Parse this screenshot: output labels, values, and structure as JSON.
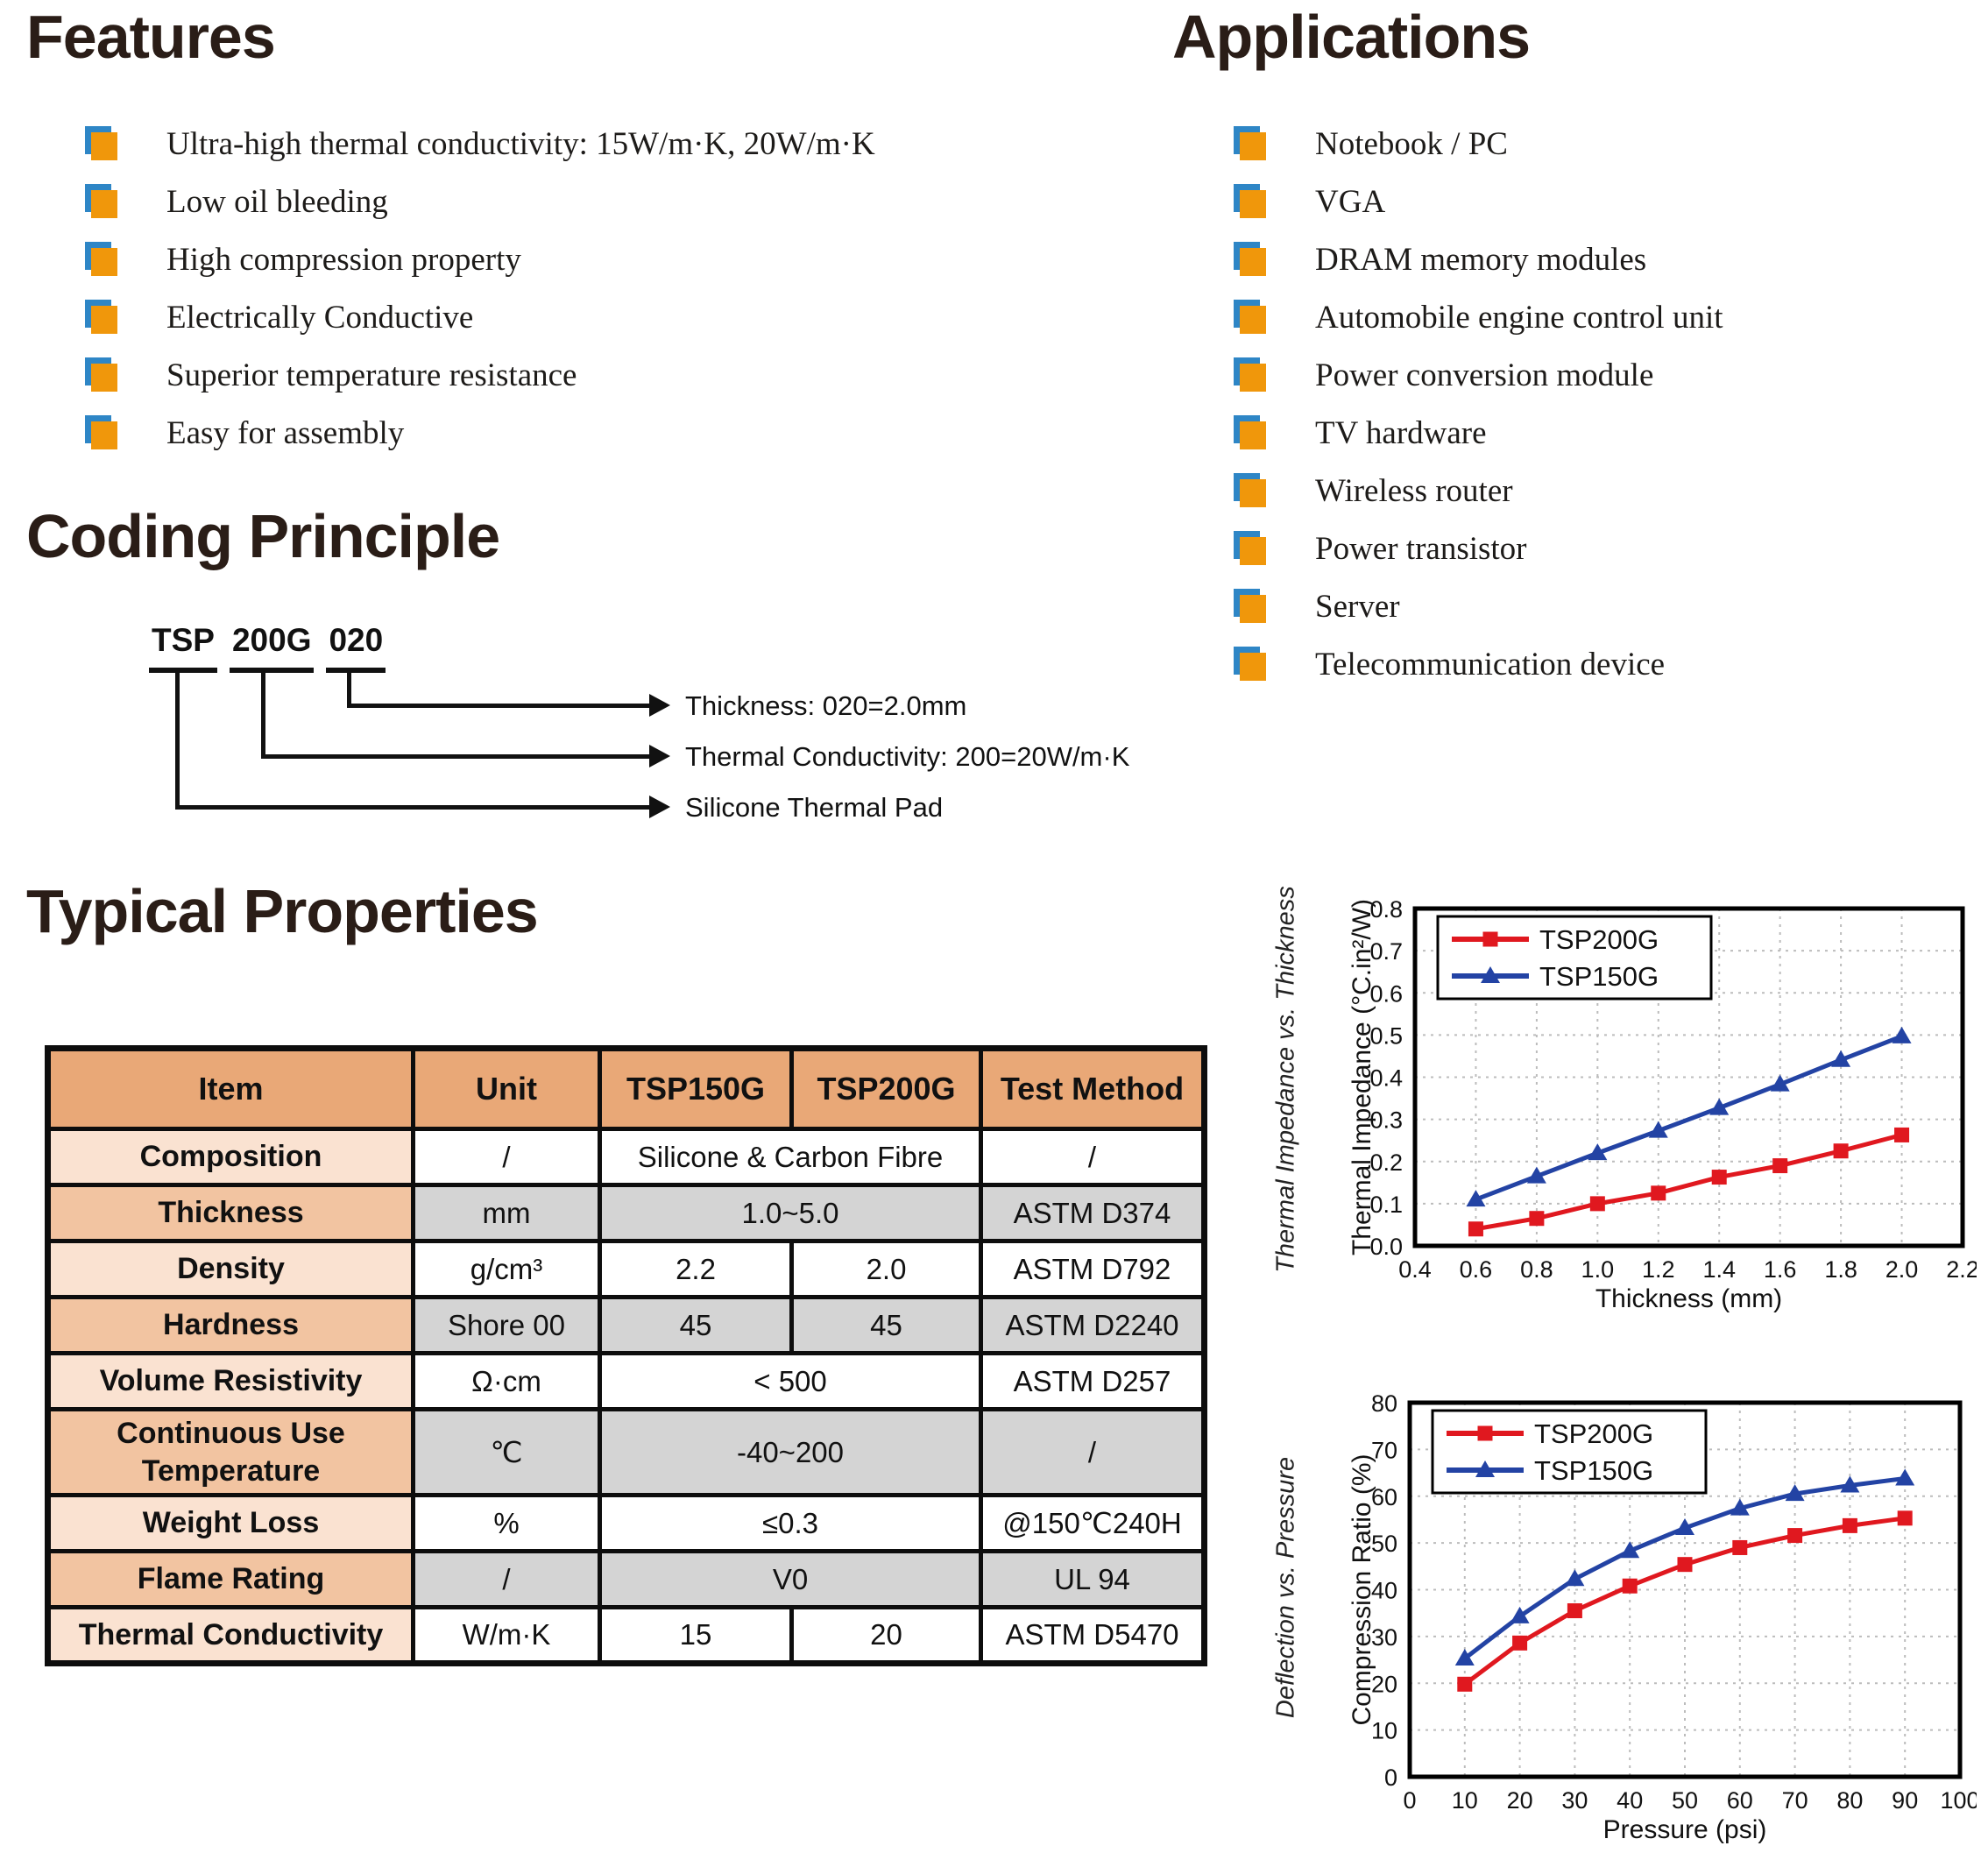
{
  "page": {
    "background": "#ffffff"
  },
  "features": {
    "title": "Features",
    "items": [
      "Ultra-high thermal conductivity: 15W/m·K, 20W/m·K",
      "Low oil bleeding",
      "High compression property",
      "Electrically Conductive",
      "Superior temperature resistance",
      "Easy for assembly"
    ]
  },
  "applications": {
    "title": "Applications",
    "items": [
      "Notebook / PC",
      "VGA",
      "DRAM memory modules",
      "Automobile engine control unit",
      "Power conversion module",
      "TV hardware",
      "Wireless router",
      "Power transistor",
      "Server",
      "Telecommunication device"
    ]
  },
  "coding_principle": {
    "title": "Coding Principle",
    "code_segments": [
      "TSP",
      "200G",
      "020"
    ],
    "callouts": [
      "Thickness: 020=2.0mm",
      "Thermal Conductivity: 200=20W/m·K",
      "Silicone Thermal Pad"
    ]
  },
  "typical_properties": {
    "title": "Typical Properties",
    "columns": [
      "Item",
      "Unit",
      "TSP150G",
      "TSP200G",
      "Test Method"
    ],
    "rows": [
      {
        "item": "Composition",
        "unit": "/",
        "merged": "Silicone & Carbon Fibre",
        "test": "/",
        "item_bg": "pink",
        "cells_bg": "white"
      },
      {
        "item": "Thickness",
        "unit": "mm",
        "merged": "1.0~5.0",
        "test": "ASTM D374",
        "item_bg": "orange",
        "cells_bg": "gray"
      },
      {
        "item": "Density",
        "unit": "g/cm³",
        "tsp150g": "2.2",
        "tsp200g": "2.0",
        "test": "ASTM D792",
        "item_bg": "pink",
        "cells_bg": "white"
      },
      {
        "item": "Hardness",
        "unit": "Shore 00",
        "tsp150g": "45",
        "tsp200g": "45",
        "test": "ASTM D2240",
        "item_bg": "orange",
        "cells_bg": "gray"
      },
      {
        "item": "Volume Resistivity",
        "unit": "Ω·cm",
        "merged": "< 500",
        "test": "ASTM D257",
        "item_bg": "pink",
        "cells_bg": "white"
      },
      {
        "item": "Continuous Use Temperature",
        "unit": "℃",
        "merged": "-40~200",
        "test": "/",
        "item_bg": "orange",
        "cells_bg": "gray",
        "tall": true
      },
      {
        "item": "Weight Loss",
        "unit": "%",
        "merged": "≤0.3",
        "test": "@150℃240H",
        "item_bg": "pink",
        "cells_bg": "white"
      },
      {
        "item": "Flame Rating",
        "unit": "/",
        "merged": "V0",
        "test": "UL 94",
        "item_bg": "orange",
        "cells_bg": "gray"
      },
      {
        "item": "Thermal Conductivity",
        "unit": "W/m·K",
        "tsp150g": "15",
        "tsp200g": "20",
        "test": "ASTM D5470",
        "item_bg": "pink",
        "cells_bg": "white"
      }
    ]
  },
  "chart_data": [
    {
      "id": "thermal-impedance",
      "type": "line",
      "side_title": "Thermal Impedance vs. Thickness",
      "xlabel": "Thickness (mm)",
      "ylabel": "Thermal Impedance (°C.in²/W)",
      "xlim": [
        0.4,
        2.2
      ],
      "xtick_step": 0.2,
      "x_decimals": 1,
      "ylim": [
        0.0,
        0.8
      ],
      "ytick_step": 0.1,
      "y_decimals": 1,
      "grid": true,
      "legend_position": "top-left",
      "x": [
        0.6,
        0.8,
        1.0,
        1.2,
        1.4,
        1.6,
        1.8,
        2.0
      ],
      "series": [
        {
          "name": "TSP200G",
          "color": "#e0181f",
          "marker": "square",
          "values": [
            0.04,
            0.065,
            0.1,
            0.125,
            0.163,
            0.19,
            0.225,
            0.263
          ]
        },
        {
          "name": "TSP150G",
          "color": "#2343a4",
          "marker": "triangle",
          "values": [
            0.11,
            0.165,
            0.22,
            0.273,
            0.327,
            0.383,
            0.441,
            0.497
          ]
        }
      ]
    },
    {
      "id": "deflection-pressure",
      "type": "line",
      "side_title": "Deflection vs. Pressure",
      "xlabel": "Pressure (psi)",
      "ylabel": "Compression Ratio (%)",
      "xlim": [
        0,
        100
      ],
      "xtick_step": 10,
      "x_decimals": 0,
      "ylim": [
        0,
        80
      ],
      "ytick_step": 10,
      "y_decimals": 0,
      "grid": true,
      "legend_position": "top-left",
      "x": [
        10,
        20,
        30,
        40,
        50,
        60,
        70,
        80,
        90
      ],
      "series": [
        {
          "name": "TSP200G",
          "color": "#e0181f",
          "marker": "square",
          "values": [
            19.8,
            28.6,
            35.5,
            40.8,
            45.4,
            49.0,
            51.6,
            53.7,
            55.3
          ]
        },
        {
          "name": "TSP150G",
          "color": "#2343a4",
          "marker": "triangle",
          "values": [
            25.3,
            34.3,
            42.3,
            48.3,
            53.2,
            57.4,
            60.5,
            62.3,
            63.8
          ]
        }
      ]
    }
  ],
  "colors": {
    "bullet_orange": "#f0970b",
    "bullet_blue": "#2e86c6",
    "table_header_bg": "#e9a877",
    "table_item_orange_bg": "#f2c4a1",
    "table_item_pink_bg": "#fae2d1",
    "table_cell_gray_bg": "#d4d4d4",
    "series_red": "#e0181f",
    "series_blue": "#2343a4",
    "heading_text": "#2a1d17",
    "border_black": "#0d0d0d"
  }
}
